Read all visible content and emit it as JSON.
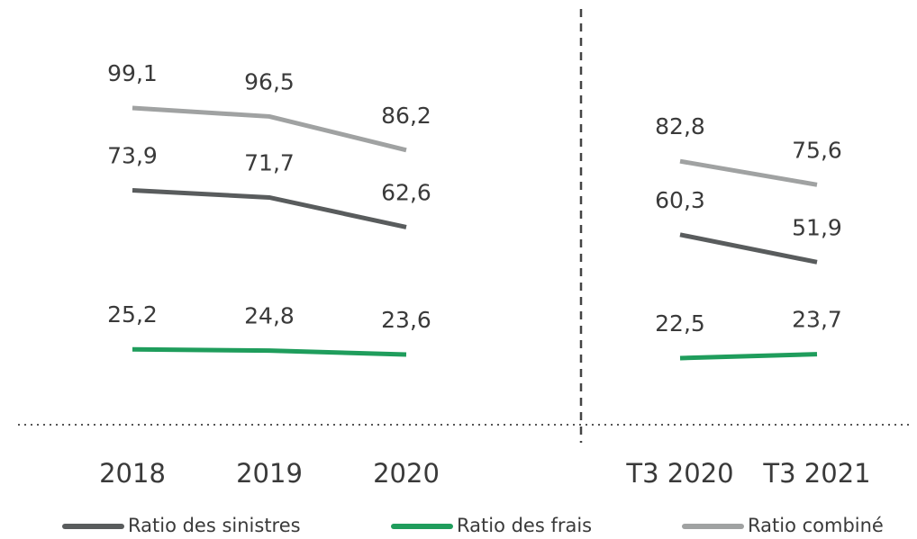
{
  "chart_data": {
    "type": "line",
    "categories": [
      "2018",
      "2019",
      "2020",
      null,
      "T3 2020",
      "T3 2021"
    ],
    "series": [
      {
        "name": "Ratio des sinistres",
        "color": "#595c5d",
        "values": [
          73.9,
          71.7,
          62.6,
          null,
          60.3,
          51.9
        ],
        "value_labels": [
          "73,9",
          "71,7",
          "62,6",
          null,
          "60,3",
          "51,9"
        ]
      },
      {
        "name": "Ratio des frais",
        "color": "#1f9d5c",
        "values": [
          25.2,
          24.8,
          23.6,
          null,
          22.5,
          23.7
        ],
        "value_labels": [
          "25,2",
          "24,8",
          "23,6",
          null,
          "22,5",
          "23,7"
        ]
      },
      {
        "name": "Ratio combiné",
        "color": "#a0a2a2",
        "values": [
          99.1,
          96.5,
          86.2,
          null,
          82.8,
          75.6
        ],
        "value_labels": [
          "99,1",
          "96,5",
          "86,2",
          null,
          "82,8",
          "75,6"
        ]
      }
    ]
  }
}
